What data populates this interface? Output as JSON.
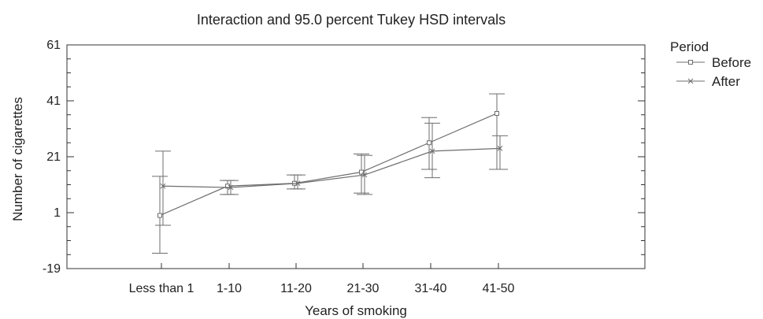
{
  "chart_data": {
    "type": "line",
    "title": "Interaction and 95.0 percent Tukey HSD intervals",
    "xlabel": "Years of smoking",
    "ylabel": "Number of cigarettes",
    "categories": [
      "Less than 1",
      "1-10",
      "11-20",
      "21-30",
      "31-40",
      "41-50"
    ],
    "ylim": [
      -19,
      61
    ],
    "yticks": [
      -19,
      1,
      21,
      41,
      61
    ],
    "grid": false,
    "legend": {
      "title": "Period",
      "placement": "top-right, outside plot"
    },
    "series": [
      {
        "name": "Before",
        "marker": "square",
        "values": [
          0,
          10.5,
          11.5,
          15.5,
          26,
          36.5
        ],
        "ci_low": [
          -13.5,
          7.5,
          9.5,
          8,
          16.5,
          16.5
        ],
        "ci_high": [
          14,
          12.5,
          14.5,
          22,
          35,
          43.5
        ]
      },
      {
        "name": "After",
        "marker": "x",
        "values": [
          10.5,
          10,
          11.5,
          14.5,
          23,
          24
        ],
        "ci_low": [
          -3.5,
          7.5,
          9.5,
          7.5,
          13.5,
          16.5
        ],
        "ci_high": [
          23,
          12.5,
          14.5,
          21.5,
          33,
          28.5
        ]
      }
    ],
    "colors": {
      "line": "#6e6e6e",
      "frame": "#333333",
      "text": "#222222"
    }
  }
}
